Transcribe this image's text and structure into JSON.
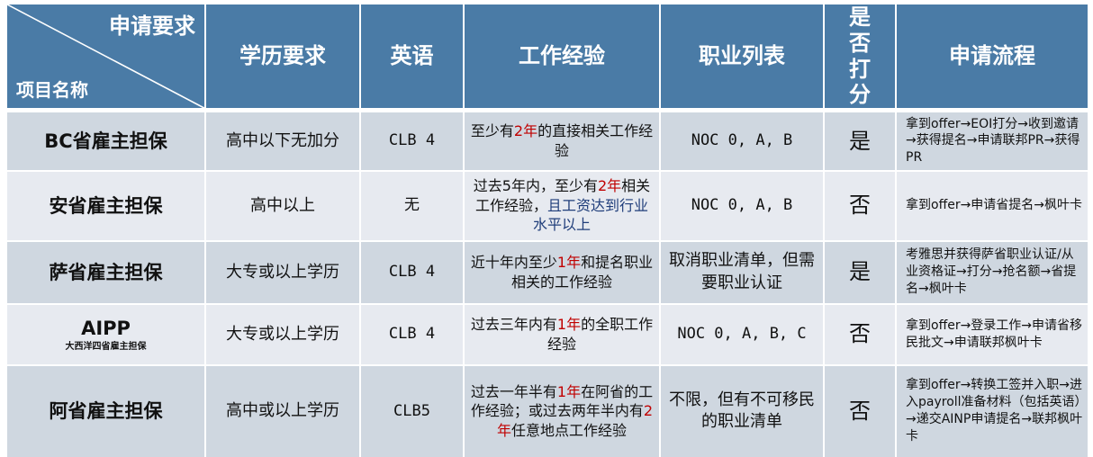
{
  "header": {
    "corner_top": "申请要求",
    "corner_bottom": "项目名称",
    "columns": [
      "学历要求",
      "英语",
      "工作经验",
      "职业列表",
      "是否打分",
      "申请流程"
    ]
  },
  "rows": [
    {
      "name": "BC省雇主担保",
      "sub": "",
      "education": "高中以下无加分",
      "english": "CLB 4",
      "work": [
        {
          "t": "至少有",
          "c": ""
        },
        {
          "t": "2年",
          "c": "red"
        },
        {
          "t": "的直接相关工作经验",
          "c": ""
        }
      ],
      "occupation": "NOC 0, A, B",
      "scored": "是",
      "process": "拿到offer→EOI打分→收到邀请→获得提名→申请联邦PR→获得PR"
    },
    {
      "name": "安省雇主担保",
      "sub": "",
      "education": "高中以上",
      "english": "无",
      "work": [
        {
          "t": "过去5年内，至少有",
          "c": ""
        },
        {
          "t": "2年",
          "c": "red"
        },
        {
          "t": "相关工作经验，",
          "c": ""
        },
        {
          "t": "且工资达到行业水平以上",
          "c": "blue"
        }
      ],
      "occupation": "NOC 0, A, B",
      "scored": "否",
      "process": "拿到offer→申请省提名→枫叶卡"
    },
    {
      "name": "萨省雇主担保",
      "sub": "",
      "education": "大专或以上学历",
      "english": "CLB 4",
      "work": [
        {
          "t": "近十年内至少",
          "c": ""
        },
        {
          "t": "1年",
          "c": "red"
        },
        {
          "t": "和提名职业相关的工作经验",
          "c": ""
        }
      ],
      "occupation": "取消职业清单，但需要职业认证",
      "scored": "是",
      "process": "考雅思并获得萨省职业认证/从业资格证→打分→抢名额→省提名→枫叶卡"
    },
    {
      "name": "AIPP",
      "sub": "大西洋四省雇主担保",
      "education": "大专或以上学历",
      "english": "CLB 4",
      "work": [
        {
          "t": "过去三年内有",
          "c": ""
        },
        {
          "t": "1年",
          "c": "red"
        },
        {
          "t": "的全职工作经验",
          "c": ""
        }
      ],
      "occupation": "NOC 0, A, B, C",
      "scored": "否",
      "process": "拿到offer→登录工作→申请省移民批文→申请联邦枫叶卡"
    },
    {
      "name": "阿省雇主担保",
      "sub": "",
      "education": "高中或以上学历",
      "english": "CLB5",
      "work": [
        {
          "t": "过去一年半有",
          "c": ""
        },
        {
          "t": "1年",
          "c": "red"
        },
        {
          "t": "在阿省的工作经验；或过去两年半内有",
          "c": ""
        },
        {
          "t": "2年",
          "c": "red"
        },
        {
          "t": "任意地点工作经验",
          "c": ""
        }
      ],
      "occupation": "不限，但有不可移民的职业清单",
      "scored": "否",
      "process": "拿到offer→转换工签并入职→进入payroll准备材料（包括英语）→递交AINP申请提名→联邦枫叶卡"
    }
  ]
}
